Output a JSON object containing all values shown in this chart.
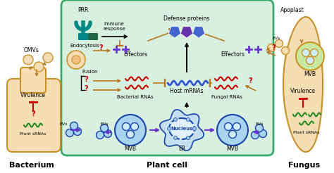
{
  "bg_color": "#ffffff",
  "plant_cell_color": "#d8f0e0",
  "plant_cell_border": "#3aaa6a",
  "bacterium_color": "#f5deb3",
  "bacterium_border": "#c8922a",
  "fungus_color": "#f5deb3",
  "fungus_border": "#c8922a",
  "mvb_fill": "#a8d4f0",
  "mvb_border": "#1a44aa",
  "arrow_brown": "#b87820",
  "arrow_purple": "#6633cc",
  "arrow_black": "#111111",
  "red_text": "#cc0000",
  "green_text": "#228b22",
  "blue_shape": "#4466cc",
  "purple_shape": "#6633aa",
  "teal_prr": "#008888",
  "label_bacterium": "Bacterium",
  "label_plant": "Plant cell",
  "label_fungus": "Fungus",
  "label_prr": "PRR",
  "label_omvs": "OMVs",
  "label_endocytosis": "Endocytosis",
  "label_immune": "Immune\nresponse",
  "label_defense": "Defense proteins",
  "label_apoplast": "Apoplast",
  "label_effectors_l": "Effectors",
  "label_effectors_r": "Effectors",
  "label_hostmrna": "Host mRNAs",
  "label_bacterial_rna": "Bacterial RNAs",
  "label_fungal_rna": "Fungal RNAs",
  "label_fusion": "Fusion",
  "label_virulence_l": "Virulence",
  "label_virulence_r": "Virulence",
  "label_plant_srna_l": "Plant sRNAs",
  "label_plant_srna_r": "Plant sRNAs",
  "label_mvb_l": "MVB",
  "label_mvb_r": "MVB",
  "label_er": "ER",
  "label_nucleus": "Nucleus",
  "label_evs_l": "EVs",
  "label_evs_r": "EVs",
  "label_evs_fungl": "EVs",
  "label_mvb_fung": "MVB"
}
